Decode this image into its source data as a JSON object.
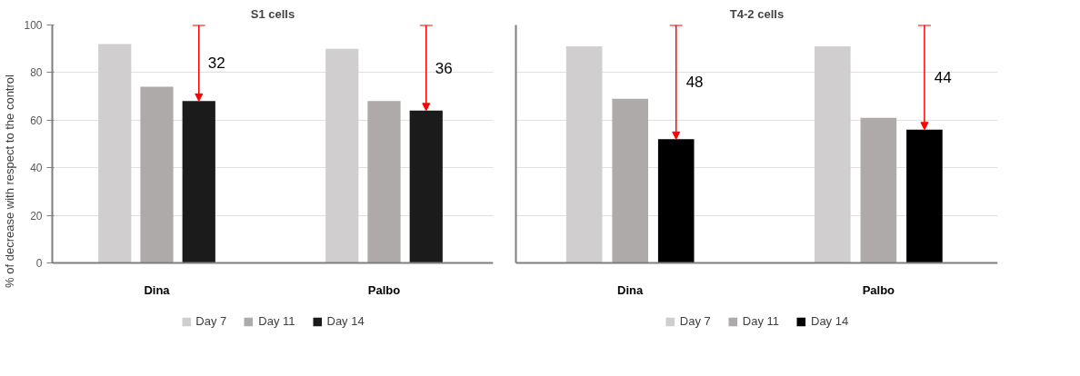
{
  "chart_data": [
    {
      "type": "bar",
      "title": "S1 cells",
      "ylabel": "% of decrease with respect to the control",
      "categories": [
        "Dina",
        "Palbo"
      ],
      "series": [
        {
          "name": "Day 7",
          "color": "#d0cece",
          "values": [
            92,
            90
          ]
        },
        {
          "name": "Day 11",
          "color": "#aeaaaa",
          "values": [
            74,
            68
          ]
        },
        {
          "name": "Day 14",
          "color": "#1b1b1b",
          "values": [
            68,
            64
          ]
        }
      ],
      "ylim": [
        0,
        100
      ],
      "yticks": [
        0,
        20,
        40,
        60,
        80,
        100
      ],
      "grid": "y",
      "legend": "bottom",
      "annotations": [
        "32",
        "36"
      ]
    },
    {
      "type": "bar",
      "title": "T4-2 cells",
      "categories": [
        "Dina",
        "Palbo"
      ],
      "series": [
        {
          "name": "Day 7",
          "color": "#d0cece",
          "values": [
            91,
            91
          ]
        },
        {
          "name": "Day 11",
          "color": "#aeaaaa",
          "values": [
            69,
            61
          ]
        },
        {
          "name": "Day 14",
          "color": "#000000",
          "values": [
            52,
            56
          ]
        }
      ],
      "ylim": [
        0,
        100
      ],
      "yticks": [
        0,
        20,
        40,
        60,
        80,
        100
      ],
      "grid": "y",
      "legend": "bottom",
      "tick_labels": "x",
      "annotations": [
        "48",
        "44"
      ]
    }
  ]
}
